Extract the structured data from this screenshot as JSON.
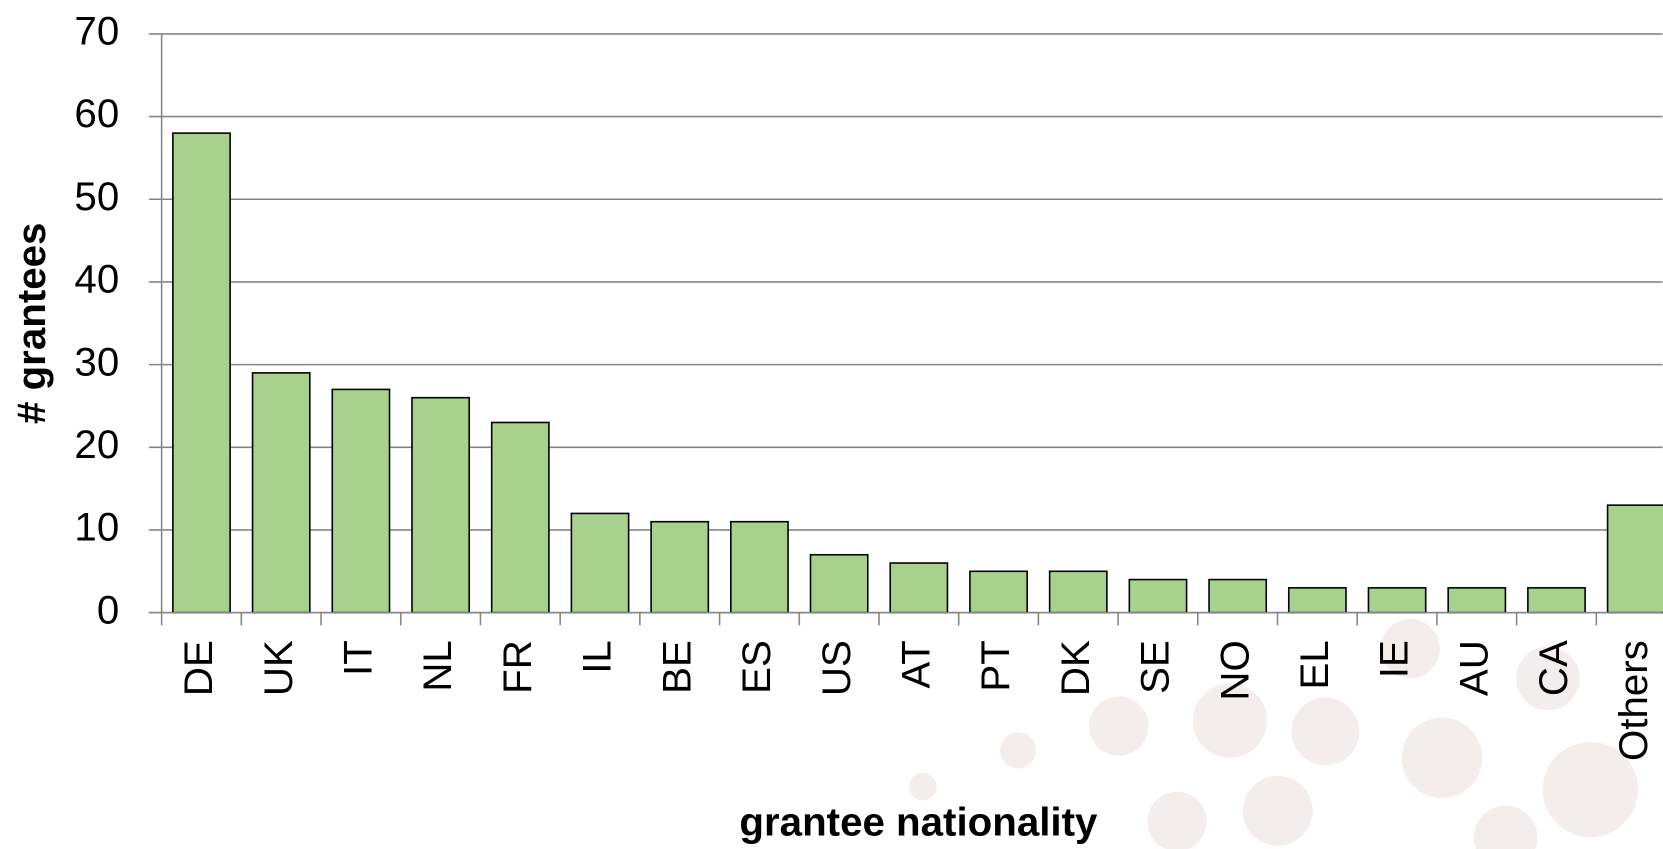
{
  "chart_data": {
    "type": "bar",
    "xlabel": "grantee nationality",
    "ylabel": "# grantees",
    "categories": [
      "DE",
      "UK",
      "IT",
      "NL",
      "FR",
      "IL",
      "BE",
      "ES",
      "US",
      "AT",
      "PT",
      "DK",
      "SE",
      "NO",
      "EL",
      "IE",
      "AU",
      "CA",
      "Others"
    ],
    "values": [
      58,
      29,
      27,
      26,
      23,
      12,
      11,
      11,
      7,
      6,
      5,
      5,
      4,
      4,
      3,
      3,
      3,
      3,
      13
    ],
    "color": "#a9d18e",
    "ylim": [
      0,
      70
    ],
    "yticks": [
      0,
      10,
      20,
      30,
      40,
      50,
      60,
      70
    ],
    "grid": true
  }
}
